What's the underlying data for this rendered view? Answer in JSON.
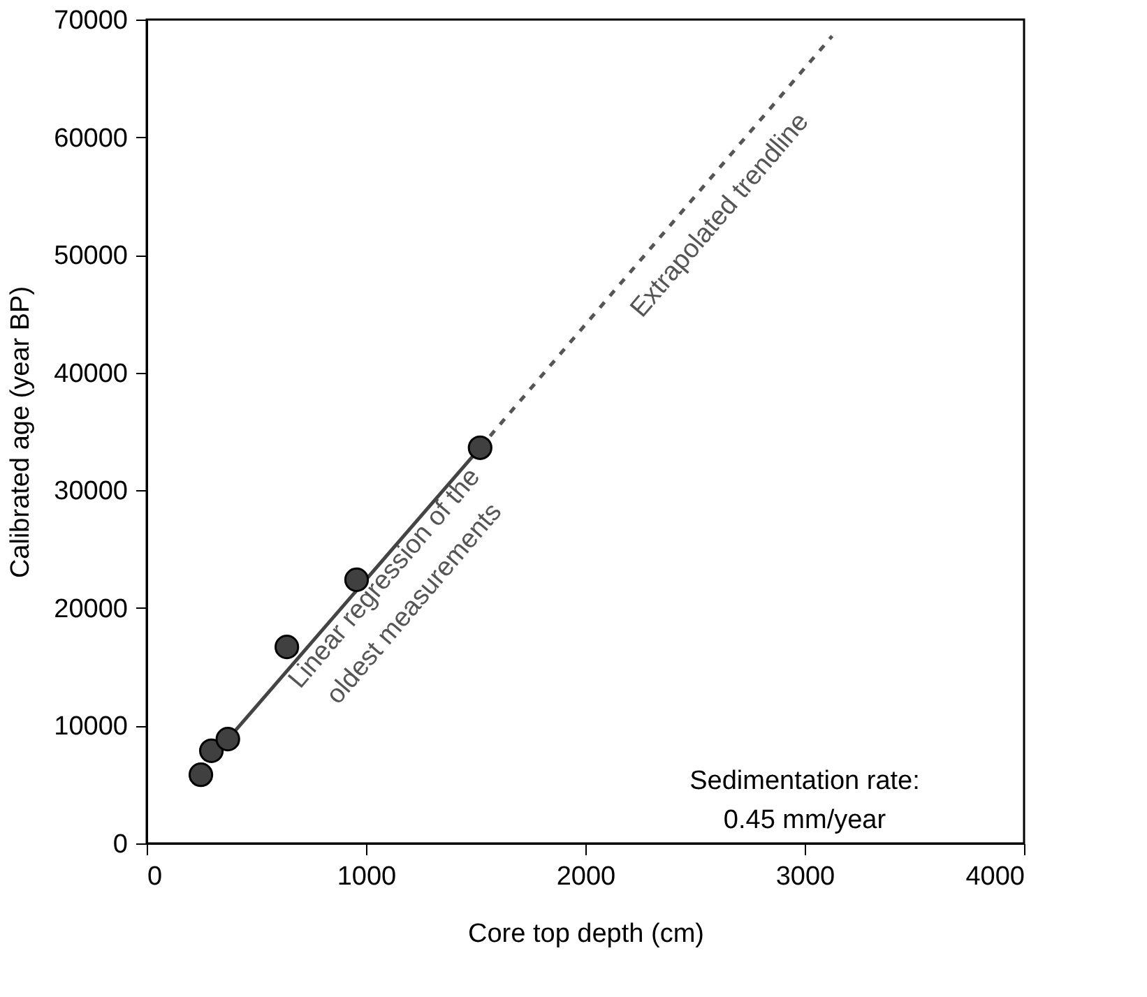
{
  "chart_data": {
    "type": "scatter",
    "xlabel": "Core top depth (cm)",
    "ylabel": "Calibrated age (year BP)",
    "xlim": [
      0,
      4000
    ],
    "xticks": [
      0,
      1000,
      2000,
      3000,
      4000
    ],
    "ylim": [
      0,
      70000
    ],
    "yticks": [
      0,
      10000,
      20000,
      30000,
      40000,
      50000,
      60000,
      70000
    ],
    "grid": false,
    "series": [
      {
        "type": "line",
        "color": "#444444",
        "line_style": "solid",
        "marker": "none",
        "x": [
          398,
          1520
        ],
        "values": [
          9450,
          33620
        ]
      },
      {
        "type": "line",
        "color": "#555555",
        "line_style": "dashed",
        "marker": "none",
        "x": [
          1520,
          3125
        ],
        "values": [
          33620,
          68600
        ]
      },
      {
        "color": "#404040",
        "marker": "circle",
        "x": [
          247,
          295,
          370,
          639,
          957,
          1520
        ],
        "values": [
          5830,
          7870,
          8860,
          16690,
          22400,
          33620
        ]
      }
    ],
    "annotations": [
      "Linear regression of the\noldest measurements",
      "Extrapolated trendline",
      "Sedimentation rate:\n0.45 mm/year"
    ]
  }
}
